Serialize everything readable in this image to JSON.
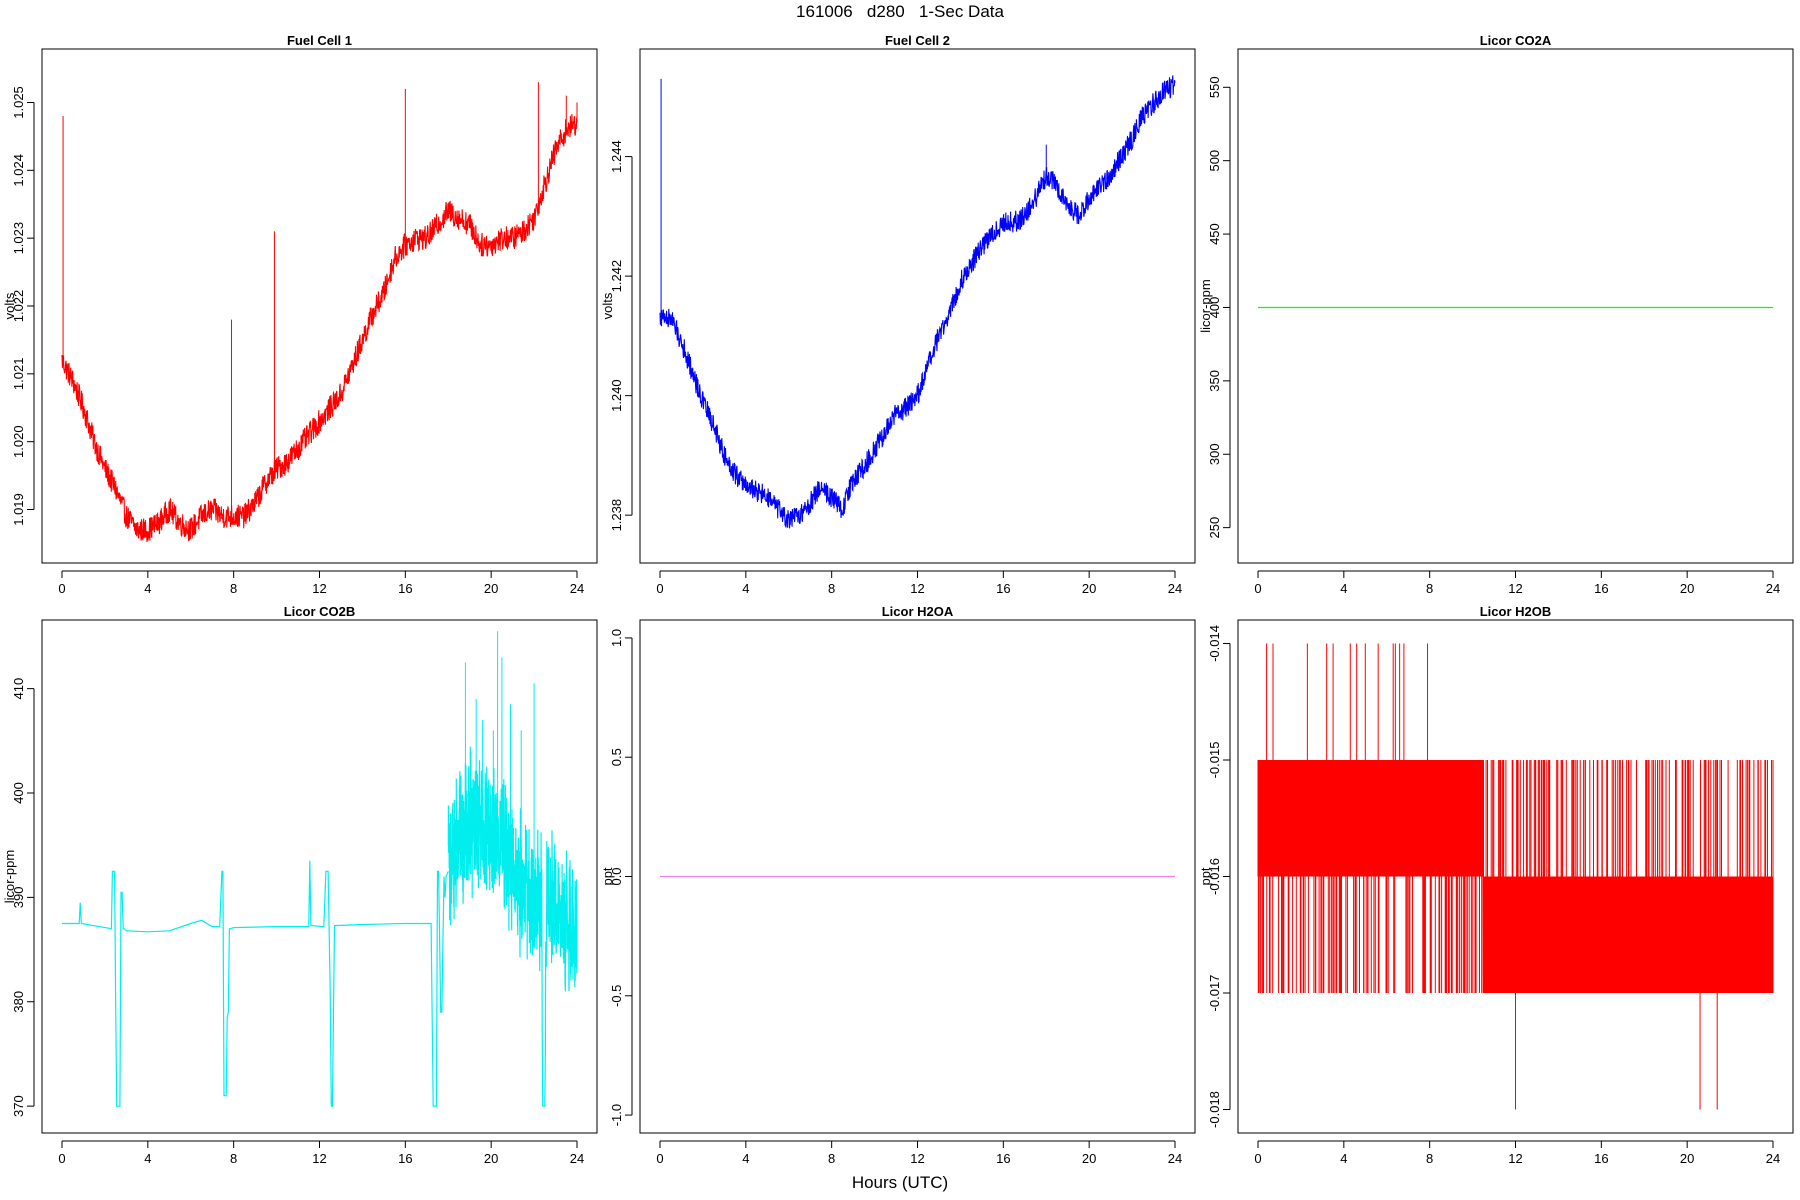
{
  "figure": {
    "title": "161006   d280   1-Sec Data",
    "xlabel": "Hours (UTC)"
  },
  "chart_data": [
    {
      "type": "line",
      "title": "Fuel Cell 1",
      "ylabel": "volts",
      "color": "#ff0000",
      "xlim": [
        0,
        24
      ],
      "ylim": [
        1.0183,
        1.0257
      ],
      "xticks": [
        0,
        4,
        8,
        12,
        16,
        20,
        24
      ],
      "yticks": [
        1.019,
        1.02,
        1.021,
        1.022,
        1.023,
        1.024,
        1.025
      ],
      "ytick_labels": [
        "1.019",
        "1.020",
        "1.021",
        "1.022",
        "1.023",
        "1.024",
        "1.025"
      ],
      "x": [
        0,
        0.5,
        1,
        1.5,
        2,
        2.5,
        3,
        3.5,
        4,
        4.5,
        5,
        5.5,
        6,
        6.5,
        7,
        7.5,
        8,
        8.5,
        9,
        9.5,
        10,
        10.5,
        11,
        11.5,
        12,
        12.5,
        13,
        13.5,
        14,
        14.5,
        15,
        15.5,
        16,
        16.5,
        17,
        17.5,
        18,
        18.5,
        19,
        19.5,
        20,
        20.5,
        21,
        21.5,
        22,
        22.5,
        23,
        23.5,
        24
      ],
      "y": [
        1.0212,
        1.0209,
        1.0205,
        1.02,
        1.0196,
        1.0193,
        1.0189,
        1.0187,
        1.0187,
        1.0188,
        1.019,
        1.0188,
        1.0187,
        1.0189,
        1.019,
        1.0189,
        1.0189,
        1.0189,
        1.0191,
        1.0194,
        1.0196,
        1.0197,
        1.0199,
        1.0201,
        1.0203,
        1.0205,
        1.0207,
        1.0211,
        1.0215,
        1.0219,
        1.0222,
        1.0227,
        1.0229,
        1.023,
        1.023,
        1.0232,
        1.0234,
        1.0233,
        1.0232,
        1.0229,
        1.0229,
        1.023,
        1.023,
        1.0231,
        1.0233,
        1.0238,
        1.0243,
        1.0246,
        1.0247
      ],
      "noise": 0.00018,
      "spikes": [
        {
          "x": 0.05,
          "y": 1.0248
        },
        {
          "x": 7.9,
          "y": 1.0218
        },
        {
          "x": 9.9,
          "y": 1.0231
        },
        {
          "x": 16.0,
          "y": 1.0252
        },
        {
          "x": 22.2,
          "y": 1.0253
        },
        {
          "x": 23.5,
          "y": 1.0251
        },
        {
          "x": 24.0,
          "y": 1.025
        }
      ]
    },
    {
      "type": "line",
      "title": "Fuel Cell 2",
      "ylabel": "volts",
      "color": "#0000ff",
      "xlim": [
        0,
        24
      ],
      "ylim": [
        1.2373,
        1.2457
      ],
      "xticks": [
        0,
        4,
        8,
        12,
        16,
        20,
        24
      ],
      "yticks": [
        1.238,
        1.24,
        1.242,
        1.244
      ],
      "ytick_labels": [
        "1.238",
        "1.240",
        "1.242",
        "1.244"
      ],
      "x": [
        0,
        0.5,
        1,
        1.5,
        2,
        2.5,
        3,
        3.5,
        4,
        4.5,
        5,
        5.5,
        6,
        6.5,
        7,
        7.5,
        8,
        8.5,
        9,
        9.5,
        10,
        10.5,
        11,
        11.5,
        12,
        12.5,
        13,
        13.5,
        14,
        14.5,
        15,
        15.5,
        16,
        16.5,
        17,
        17.5,
        18,
        18.5,
        19,
        19.5,
        20,
        20.5,
        21,
        21.5,
        22,
        22.5,
        23,
        23.5,
        24
      ],
      "y": [
        1.2413,
        1.2413,
        1.2409,
        1.2404,
        1.2399,
        1.2395,
        1.239,
        1.2387,
        1.2385,
        1.2384,
        1.2383,
        1.2381,
        1.2379,
        1.238,
        1.2382,
        1.2385,
        1.2383,
        1.2381,
        1.2386,
        1.2388,
        1.2391,
        1.2394,
        1.2397,
        1.2398,
        1.24,
        1.2405,
        1.241,
        1.2414,
        1.2419,
        1.2422,
        1.2425,
        1.2427,
        1.2429,
        1.2429,
        1.243,
        1.2433,
        1.2437,
        1.2435,
        1.2432,
        1.243,
        1.2433,
        1.2435,
        1.2437,
        1.244,
        1.2443,
        1.2447,
        1.2449,
        1.2451,
        1.2452
      ],
      "noise": 0.00018,
      "spikes": [
        {
          "x": 0.05,
          "y": 1.2453
        },
        {
          "x": 18.0,
          "y": 1.2442
        }
      ]
    },
    {
      "type": "line",
      "title": "Licor CO2A",
      "ylabel": "licor-ppm",
      "color": "#00ff00",
      "xlim": [
        0,
        24
      ],
      "ylim": [
        230,
        572
      ],
      "xticks": [
        0,
        4,
        8,
        12,
        16,
        20,
        24
      ],
      "yticks": [
        250,
        300,
        350,
        400,
        450,
        500,
        550
      ],
      "ytick_labels": [
        "250",
        "300",
        "350",
        "400",
        "450",
        "500",
        "550"
      ],
      "x": [
        0,
        24
      ],
      "y": [
        400,
        400
      ],
      "noise": 0,
      "spikes": []
    },
    {
      "type": "line",
      "title": "Licor CO2B",
      "ylabel": "licor-ppm",
      "color": "#00eeee",
      "xlim": [
        0,
        24
      ],
      "ylim": [
        368,
        416
      ],
      "xticks": [
        0,
        4,
        8,
        12,
        16,
        20,
        24
      ],
      "yticks": [
        370,
        380,
        390,
        400,
        410
      ],
      "ytick_labels": [
        "370",
        "380",
        "390",
        "400",
        "410"
      ],
      "x": [
        0,
        0.8,
        0.85,
        0.9,
        2.3,
        2.35,
        2.45,
        2.5,
        2.55,
        2.6,
        2.7,
        2.75,
        2.8,
        2.85,
        2.9,
        3.0,
        4.0,
        5.0,
        6.0,
        6.5,
        7.0,
        7.35,
        7.45,
        7.5,
        7.55,
        7.65,
        7.7,
        7.75,
        7.8,
        7.85,
        8.0,
        10.0,
        11.5,
        11.55,
        11.6,
        12.2,
        12.3,
        12.4,
        12.5,
        12.55,
        12.6,
        12.7,
        14.0,
        16.0,
        17.2,
        17.3,
        17.35,
        17.45,
        17.5,
        17.55,
        17.65,
        17.7,
        17.8,
        17.85,
        17.9,
        18.0
      ],
      "y": [
        387.5,
        387.5,
        389.5,
        387.5,
        387.0,
        392.5,
        392.5,
        380.5,
        370.0,
        370.0,
        370.0,
        390.5,
        390.5,
        387.0,
        387.0,
        386.8,
        386.7,
        386.8,
        387.5,
        387.8,
        387.2,
        387.2,
        392.5,
        392.5,
        371.0,
        371.0,
        378.5,
        379.0,
        387.0,
        387.0,
        387.1,
        387.2,
        387.2,
        393.5,
        387.3,
        387.2,
        392.5,
        392.5,
        381.0,
        370.0,
        370.0,
        387.3,
        387.4,
        387.5,
        387.5,
        370.0,
        370.0,
        370.0,
        392.5,
        392.5,
        379.0,
        379.0,
        392.0,
        390.0,
        392.0,
        392.5
      ],
      "noisy_segment": {
        "x": [
          18.0,
          18.5,
          19.0,
          19.5,
          20.0,
          20.5,
          21.0,
          21.5,
          22.0,
          22.2,
          22.35,
          22.4,
          22.5,
          22.6,
          22.7,
          23.0,
          23.5,
          24.0
        ],
        "y": [
          392.5,
          395.0,
          398.0,
          397.0,
          396.0,
          395.0,
          393.0,
          391.0,
          390.0,
          389.5,
          389.5,
          370.0,
          370.0,
          392.0,
          390.0,
          389.0,
          387.5,
          387.5
        ],
        "noise": 3.2,
        "peaks": [
          {
            "x": 18.8,
            "y": 412.5
          },
          {
            "x": 19.3,
            "y": 409.0
          },
          {
            "x": 19.6,
            "y": 407.0
          },
          {
            "x": 20.1,
            "y": 406.0
          },
          {
            "x": 20.3,
            "y": 415.5
          },
          {
            "x": 20.5,
            "y": 413.0
          },
          {
            "x": 20.9,
            "y": 408.5
          },
          {
            "x": 21.4,
            "y": 406.0
          },
          {
            "x": 22.0,
            "y": 410.5
          }
        ]
      }
    },
    {
      "type": "line",
      "title": "Licor H2OA",
      "ylabel": "ppt",
      "color": "#ee82ee",
      "xlim": [
        0,
        24
      ],
      "ylim": [
        -1.05,
        1.05
      ],
      "xticks": [
        0,
        4,
        8,
        12,
        16,
        20,
        24
      ],
      "yticks": [
        -1.0,
        -0.5,
        0.0,
        0.5,
        1.0
      ],
      "ytick_labels": [
        "-1.0",
        "-0.5",
        "0.0",
        "0.5",
        "1.0"
      ],
      "x": [
        0,
        24
      ],
      "y": [
        0.0,
        0.0
      ],
      "noise": 0,
      "spikes": []
    },
    {
      "type": "line",
      "title": "Licor H2OB",
      "ylabel": "ppt",
      "color": "#ff0000",
      "xlim": [
        0,
        24
      ],
      "ylim": [
        -0.01815,
        -0.01385
      ],
      "xticks": [
        0,
        4,
        8,
        12,
        16,
        20,
        24
      ],
      "yticks": [
        -0.018,
        -0.017,
        -0.016,
        -0.015,
        -0.014
      ],
      "ytick_labels": [
        "-0.018",
        "-0.017",
        "-0.016",
        "-0.015",
        "-0.014"
      ],
      "levels": {
        "upper_band": [
          -0.016,
          -0.015
        ],
        "lower_band": [
          -0.017,
          -0.016
        ],
        "upper_band_x": [
          0,
          10.5
        ],
        "lower_band_x": [
          10.5,
          24
        ]
      },
      "up_spikes_to": -0.014,
      "up_spike_x": [
        0.4,
        0.7,
        2.3,
        3.2,
        3.5,
        4.3,
        4.6,
        5.0,
        5.6,
        6.3,
        6.4,
        6.6,
        6.8,
        7.9
      ],
      "down_spikes_to": -0.018,
      "down_spike_x": [
        12.0,
        20.6,
        21.4
      ]
    }
  ]
}
